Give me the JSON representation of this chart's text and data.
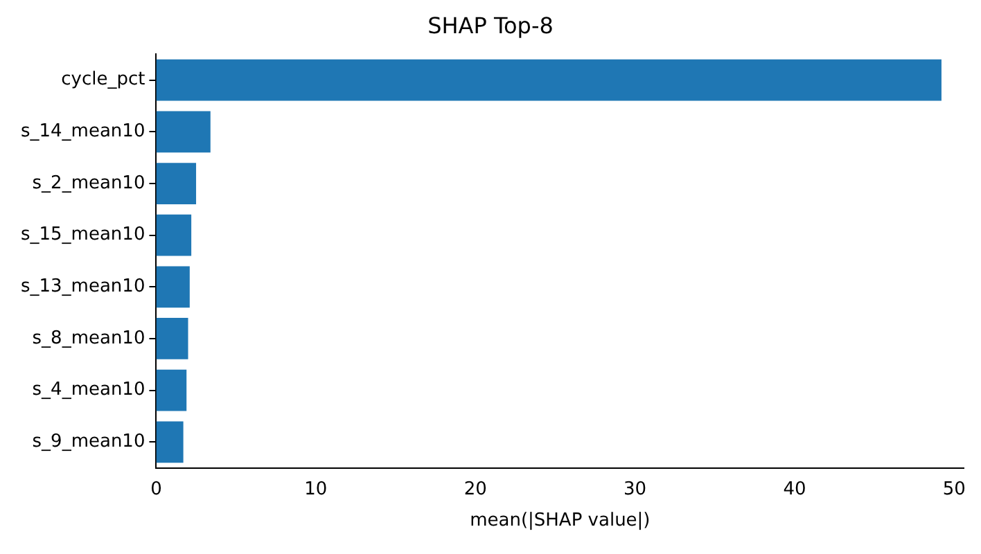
{
  "chart_data": {
    "type": "bar",
    "orientation": "horizontal",
    "title": "SHAP Top-8",
    "xlabel": "mean(|SHAP value|)",
    "categories": [
      "cycle_pct",
      "s_14_mean10",
      "s_2_mean10",
      "s_15_mean10",
      "s_13_mean10",
      "s_8_mean10",
      "s_4_mean10",
      "s_9_mean10"
    ],
    "values": [
      49.2,
      3.4,
      2.5,
      2.2,
      2.1,
      2.0,
      1.9,
      1.7
    ],
    "color": "#1f77b4",
    "xlim": [
      0,
      50.6
    ],
    "xticks": [
      0,
      10,
      20,
      30,
      40,
      50
    ],
    "grid": false,
    "legend": false
  }
}
